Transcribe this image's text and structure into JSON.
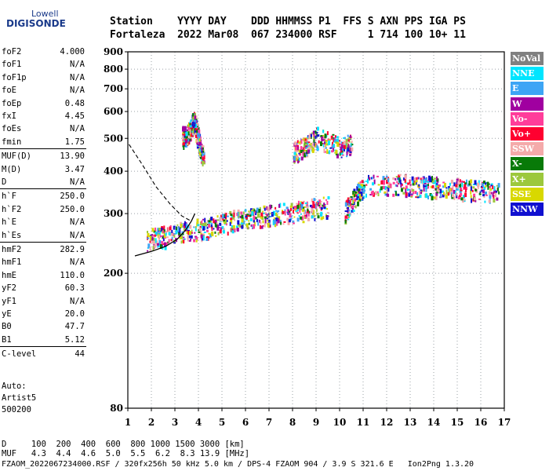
{
  "logo": {
    "top": "Lowell",
    "main": "DIGISONDE"
  },
  "header": {
    "line1": "Station    YYYY DAY    DDD HHMMSS P1  FFS S AXN PPS IGA PS",
    "line2": "Fortaleza  2022 Mar08  067 234000 RSF     1 714 100 10+ 11"
  },
  "params": [
    {
      "k": "foF2",
      "v": "4.000"
    },
    {
      "k": "foF1",
      "v": "N/A"
    },
    {
      "k": "foF1p",
      "v": "N/A"
    },
    {
      "k": "foE",
      "v": "N/A"
    },
    {
      "k": "foEp",
      "v": "0.48"
    },
    {
      "k": "fxI",
      "v": "4.45"
    },
    {
      "k": "foEs",
      "v": "N/A"
    },
    {
      "k": "fmin",
      "v": "1.75"
    },
    {
      "k": "MUF(D)",
      "v": "13.90"
    },
    {
      "k": "M(D)",
      "v": "3.47"
    },
    {
      "k": "D",
      "v": "N/A"
    },
    {
      "k": "h`F",
      "v": "250.0"
    },
    {
      "k": "h`F2",
      "v": "250.0"
    },
    {
      "k": "h`E",
      "v": "N/A"
    },
    {
      "k": "h`Es",
      "v": "N/A"
    },
    {
      "k": "hmF2",
      "v": "282.9"
    },
    {
      "k": "hmF1",
      "v": "N/A"
    },
    {
      "k": "hmE",
      "v": "110.0"
    },
    {
      "k": "yF2",
      "v": "60.3"
    },
    {
      "k": "yF1",
      "v": "N/A"
    },
    {
      "k": "yE",
      "v": "20.0"
    },
    {
      "k": "B0",
      "v": "47.7"
    },
    {
      "k": "B1",
      "v": "5.12"
    },
    {
      "k": "C-level",
      "v": "44"
    }
  ],
  "autoscale": {
    "line1": "Auto:",
    "line2": "Artist5",
    "line3": "500200"
  },
  "footer": {
    "d_row": "D     100  200  400  600  800 1000 1500 3000 [km]",
    "muf_row": "MUF   4.3  4.4  4.6  5.0  5.5  6.2  8.3 13.9 [MHz]",
    "info": "FZAOM_2022067234000.RSF / 320fx256h 50 kHz 5.0 km / DPS-4 FZAOM 904 / 3.9 S 321.6 E   Ion2Png 1.3.20"
  },
  "legend": [
    {
      "label": "NoVal",
      "color": "#808080"
    },
    {
      "label": "NNE",
      "color": "#00e5ff"
    },
    {
      "label": "E",
      "color": "#3da5f5"
    },
    {
      "label": "W",
      "color": "#a000a0"
    },
    {
      "label": "Vo-",
      "color": "#ff3d9a"
    },
    {
      "label": "Vo+",
      "color": "#ff0030"
    },
    {
      "label": "SSW",
      "color": "#f4aaaa"
    },
    {
      "label": "X-",
      "color": "#087a08"
    },
    {
      "label": "X+",
      "color": "#9cc83c"
    },
    {
      "label": "SSE",
      "color": "#d8d800"
    },
    {
      "label": "NNW",
      "color": "#1010d0"
    }
  ],
  "chart_data": {
    "type": "scatter",
    "x_ticks": [
      "1",
      "2",
      "3",
      "4",
      "5",
      "6",
      "7",
      "8",
      "9",
      "10",
      "11",
      "12",
      "13",
      "14",
      "15",
      "16",
      "17"
    ],
    "y_ticks": [
      "80",
      "200",
      "300",
      "400",
      "500",
      "600",
      "700",
      "800",
      "900"
    ],
    "xlim": [
      1,
      17
    ],
    "y_axis": "log",
    "ylim": [
      80,
      900
    ],
    "grid": true,
    "traces": [
      {
        "label": "F trace low",
        "points": [
          [
            1.8,
            250
          ],
          [
            2.5,
            255
          ],
          [
            3.5,
            265
          ],
          [
            4.5,
            272
          ],
          [
            5.5,
            285
          ],
          [
            6.5,
            292
          ],
          [
            7.5,
            298
          ],
          [
            8.5,
            305
          ],
          [
            9.5,
            315
          ]
        ]
      },
      {
        "label": "F trace high",
        "points": [
          [
            10.2,
            300
          ],
          [
            10.6,
            330
          ],
          [
            11,
            360
          ],
          [
            12.5,
            365
          ],
          [
            13.5,
            358
          ],
          [
            14.5,
            355
          ],
          [
            15.5,
            350
          ],
          [
            16.8,
            345
          ]
        ]
      },
      {
        "label": "F2 extraordinary",
        "points": [
          [
            8,
            450
          ],
          [
            8.5,
            470
          ],
          [
            9,
            500
          ],
          [
            10,
            470
          ],
          [
            10.5,
            480
          ]
        ]
      },
      {
        "label": "oblique cluster 3-4 MHz",
        "points": [
          [
            3.3,
            500
          ],
          [
            3.6,
            520
          ],
          [
            3.8,
            560
          ],
          [
            4.0,
            480
          ],
          [
            4.2,
            430
          ]
        ]
      }
    ],
    "profile_solid": [
      [
        1.3,
        225
      ],
      [
        2.0,
        232
      ],
      [
        2.6,
        240
      ],
      [
        3.1,
        252
      ],
      [
        3.45,
        268
      ],
      [
        3.7,
        285
      ],
      [
        3.85,
        300
      ]
    ],
    "profile_dashed": [
      [
        1.05,
        480
      ],
      [
        1.6,
        420
      ],
      [
        2.2,
        360
      ],
      [
        2.8,
        320
      ],
      [
        3.3,
        295
      ],
      [
        3.7,
        285
      ]
    ]
  }
}
